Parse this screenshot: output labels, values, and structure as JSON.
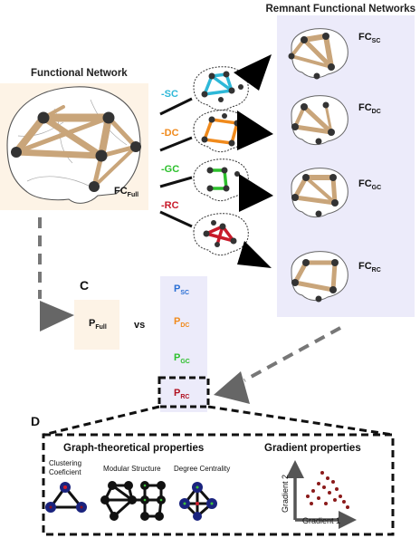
{
  "titles": {
    "remnant": "Remnant Functional Networks",
    "functional": "Functional Network",
    "section_c": "C",
    "section_d": "D",
    "vs": "vs",
    "graph_props": "Graph-theoretical properties",
    "gradient_props": "Gradient properties"
  },
  "full": {
    "fc_main": "FC",
    "fc_sub": "Full",
    "p_main": "P",
    "p_sub": "Full"
  },
  "removals": [
    {
      "label": "-SC",
      "color": "#2eb8d8"
    },
    {
      "label": "-DC",
      "color": "#f08a1c"
    },
    {
      "label": "-GC",
      "color": "#2cc02c"
    },
    {
      "label": "-RC",
      "color": "#c81a2a"
    }
  ],
  "remnant_fc": [
    {
      "main": "FC",
      "sub": "SC"
    },
    {
      "main": "FC",
      "sub": "DC"
    },
    {
      "main": "FC",
      "sub": "GC"
    },
    {
      "main": "FC",
      "sub": "RC"
    }
  ],
  "p_values": [
    {
      "main": "P",
      "sub": "SC",
      "color": "#2a6fd4"
    },
    {
      "main": "P",
      "sub": "DC",
      "color": "#f08a1c"
    },
    {
      "main": "P",
      "sub": "GC",
      "color": "#2cc02c"
    },
    {
      "main": "P",
      "sub": "RC",
      "color": "#b01020"
    }
  ],
  "graph_items": [
    {
      "label_line1": "Clustering",
      "label_line2": "Coeficient"
    },
    {
      "label_line1": "Modular Structure",
      "label_line2": ""
    },
    {
      "label_line1": "Degree Centrality",
      "label_line2": ""
    }
  ],
  "gradient_axes": {
    "y": "Gradient 2",
    "x": "Gradient 1"
  },
  "colors": {
    "tan": "#c9a57a",
    "tan_bg": "#fdf3e6",
    "lavender": "#ecebfa",
    "node": "#333333",
    "scatter": "#8b1a1a"
  }
}
